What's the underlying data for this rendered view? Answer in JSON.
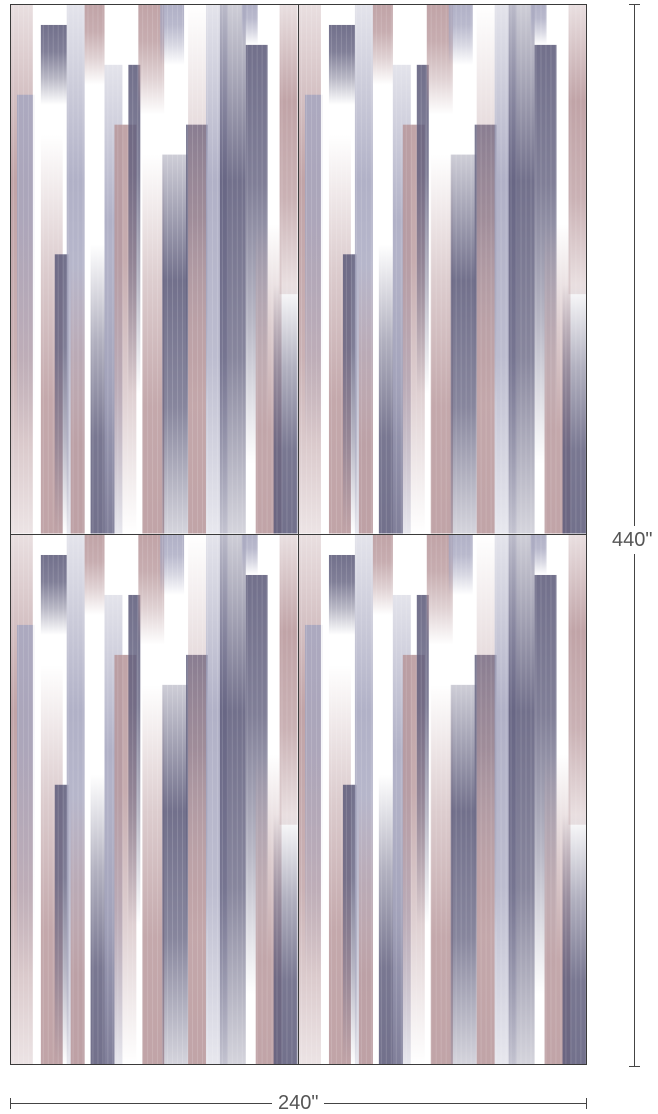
{
  "dimensions": {
    "height_label": "440\"",
    "width_label": "240\""
  },
  "pattern": {
    "name": "vertical-ikat-stripes",
    "colors": {
      "mauve": "#b8979b",
      "slate": "#5f5d7c",
      "lavender": "#a6a6bf",
      "white": "#ffffff"
    },
    "repeat": {
      "across": 2,
      "down": 2
    }
  }
}
